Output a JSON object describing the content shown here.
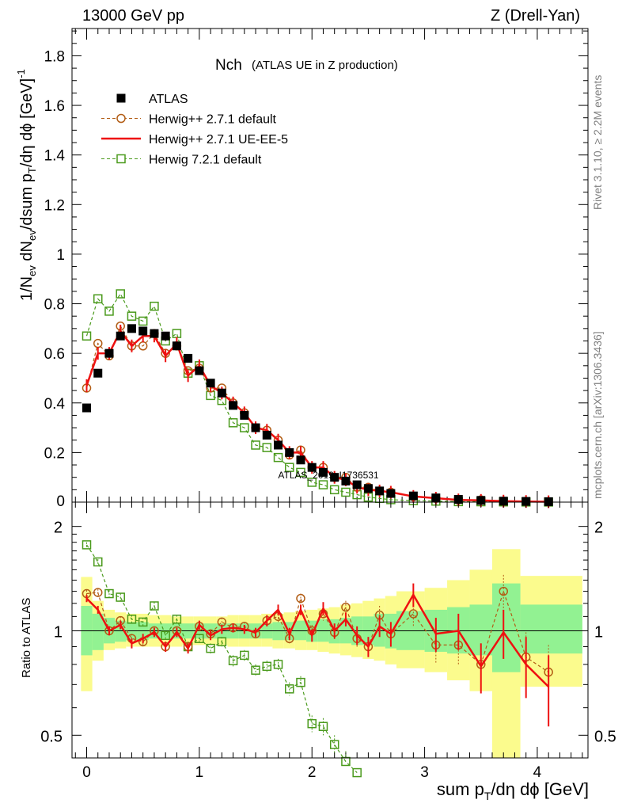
{
  "header": {
    "left": "13000 GeV pp",
    "right": "Z (Drell-Yan)"
  },
  "side_labels": {
    "rivet": "Rivet 3.1.10, ≥ 2.2M events",
    "mcplots": "mcplots.cern.ch [arXiv:1306.3436]"
  },
  "watermark": "ATLAS_2019_I1736531",
  "chart_data": [
    {
      "type": "scatter",
      "panel": "main",
      "title_main": "Nch",
      "title_sub": "(ATLAS UE in Z production)",
      "ylabel": "1/Nev dNev/dsum pT/dη dϕ [GeV]^-1",
      "xlabel": "sum pT/dη dϕ [GeV]",
      "xlim": [
        -0.13,
        4.45
      ],
      "ylim": [
        0,
        1.91
      ],
      "y_ticks": [
        0.2,
        0.4,
        0.6,
        0.8,
        1,
        1.2,
        1.4,
        1.6,
        1.8
      ],
      "y_tick_labels": [
        "0.2",
        "0.4",
        "0.6",
        "0.8",
        "1",
        "1.2",
        "1.4",
        "1.6",
        "1.8"
      ],
      "y_zero_label": "0",
      "legend_position": "top-left",
      "x": [
        0.0,
        0.1,
        0.2,
        0.3,
        0.4,
        0.5,
        0.6,
        0.7,
        0.8,
        0.9,
        1.0,
        1.1,
        1.2,
        1.3,
        1.4,
        1.5,
        1.6,
        1.7,
        1.8,
        1.9,
        2.0,
        2.1,
        2.2,
        2.3,
        2.4,
        2.5,
        2.6,
        2.7,
        2.9,
        3.1,
        3.3,
        3.5,
        3.7,
        3.9,
        4.1
      ],
      "series": [
        {
          "name": "ATLAS",
          "style": "marker-square",
          "color": "#000000",
          "values": [
            0.38,
            0.52,
            0.6,
            0.67,
            0.7,
            0.69,
            0.68,
            0.67,
            0.63,
            0.58,
            0.53,
            0.48,
            0.44,
            0.39,
            0.35,
            0.3,
            0.27,
            0.23,
            0.2,
            0.17,
            0.14,
            0.12,
            0.1,
            0.085,
            0.07,
            0.055,
            0.045,
            0.035,
            0.025,
            0.017,
            0.011,
            0.007,
            0.004,
            0.003,
            0.002
          ]
        },
        {
          "name": "Herwig++ 2.7.1 default",
          "style": "dashed-circle",
          "color": "#b25d15",
          "values": [
            0.46,
            0.64,
            0.59,
            0.71,
            0.63,
            0.63,
            0.68,
            0.6,
            0.63,
            0.53,
            0.54,
            0.46,
            0.46,
            0.4,
            0.36,
            0.3,
            0.29,
            0.25,
            0.19,
            0.21,
            0.14,
            0.14,
            0.1,
            0.1,
            0.06,
            0.06,
            0.045,
            0.04,
            0.022,
            0.015,
            0.009,
            0.009,
            0.004,
            0.003,
            0.0015
          ]
        },
        {
          "name": "Herwig++ 2.7.1 UE-EE-5",
          "style": "solid-line",
          "color": "#ee1111",
          "values": [
            0.47,
            0.6,
            0.6,
            0.69,
            0.63,
            0.67,
            0.67,
            0.59,
            0.64,
            0.51,
            0.55,
            0.47,
            0.44,
            0.4,
            0.36,
            0.3,
            0.29,
            0.25,
            0.2,
            0.2,
            0.14,
            0.14,
            0.1,
            0.09,
            0.06,
            0.05,
            0.045,
            0.04,
            0.023,
            0.016,
            0.009,
            0.007,
            0.004,
            0.0025,
            0.0015
          ]
        },
        {
          "name": "Herwig 7.2.1 default",
          "style": "dashed-square",
          "color": "#4a9a1c",
          "values": [
            0.67,
            0.82,
            0.77,
            0.84,
            0.75,
            0.73,
            0.79,
            0.65,
            0.68,
            0.52,
            0.55,
            0.43,
            0.41,
            0.32,
            0.3,
            0.23,
            0.22,
            0.18,
            0.14,
            0.12,
            0.08,
            0.07,
            0.05,
            0.04,
            0.03,
            0.02,
            0.015,
            0.01,
            0.006,
            0.004,
            0.002,
            0.0015,
            0.001,
            0.0005,
            0.0003
          ]
        }
      ]
    },
    {
      "type": "line",
      "panel": "ratio",
      "ylabel": "Ratio to ATLAS",
      "scale": "log",
      "ylim": [
        0.43,
        2.35
      ],
      "x_ticks": [
        0,
        1,
        2,
        3,
        4
      ],
      "x_tick_labels": [
        "0",
        "1",
        "2",
        "3",
        "4"
      ],
      "y_ticks": [
        0.5,
        1,
        2
      ],
      "y_tick_labels": [
        "0.5",
        "1",
        "2"
      ],
      "reference_line": 1,
      "band_edges": [
        -0.05,
        0.05,
        0.15,
        0.25,
        0.35,
        0.45,
        0.55,
        0.65,
        0.75,
        0.85,
        0.95,
        1.05,
        1.15,
        1.25,
        1.35,
        1.45,
        1.55,
        1.65,
        1.75,
        1.85,
        1.95,
        2.05,
        2.15,
        2.25,
        2.35,
        2.45,
        2.55,
        2.65,
        2.75,
        3.0,
        3.2,
        3.4,
        3.6,
        3.85,
        4.4
      ],
      "band_inner": [
        [
          0.85,
          1.18
        ],
        [
          0.88,
          1.12
        ],
        [
          0.92,
          1.09
        ],
        [
          0.93,
          1.07
        ],
        [
          0.94,
          1.06
        ],
        [
          0.94,
          1.06
        ],
        [
          0.95,
          1.05
        ],
        [
          0.95,
          1.05
        ],
        [
          0.95,
          1.05
        ],
        [
          0.95,
          1.05
        ],
        [
          0.95,
          1.05
        ],
        [
          0.95,
          1.05
        ],
        [
          0.95,
          1.05
        ],
        [
          0.95,
          1.05
        ],
        [
          0.95,
          1.05
        ],
        [
          0.95,
          1.05
        ],
        [
          0.95,
          1.05
        ],
        [
          0.94,
          1.06
        ],
        [
          0.94,
          1.06
        ],
        [
          0.94,
          1.07
        ],
        [
          0.93,
          1.07
        ],
        [
          0.93,
          1.08
        ],
        [
          0.92,
          1.08
        ],
        [
          0.92,
          1.09
        ],
        [
          0.91,
          1.1
        ],
        [
          0.91,
          1.1
        ],
        [
          0.9,
          1.12
        ],
        [
          0.89,
          1.12
        ],
        [
          0.88,
          1.14
        ],
        [
          0.87,
          1.15
        ],
        [
          0.86,
          1.17
        ],
        [
          0.85,
          1.19
        ],
        [
          0.76,
          1.37
        ],
        [
          0.86,
          1.19
        ]
      ],
      "band_outer": [
        [
          0.67,
          1.43
        ],
        [
          0.82,
          1.22
        ],
        [
          0.88,
          1.15
        ],
        [
          0.89,
          1.13
        ],
        [
          0.9,
          1.12
        ],
        [
          0.9,
          1.12
        ],
        [
          0.9,
          1.11
        ],
        [
          0.9,
          1.11
        ],
        [
          0.9,
          1.1
        ],
        [
          0.91,
          1.1
        ],
        [
          0.91,
          1.1
        ],
        [
          0.91,
          1.1
        ],
        [
          0.91,
          1.1
        ],
        [
          0.9,
          1.11
        ],
        [
          0.9,
          1.11
        ],
        [
          0.9,
          1.11
        ],
        [
          0.9,
          1.12
        ],
        [
          0.89,
          1.12
        ],
        [
          0.89,
          1.13
        ],
        [
          0.88,
          1.14
        ],
        [
          0.88,
          1.15
        ],
        [
          0.87,
          1.16
        ],
        [
          0.86,
          1.17
        ],
        [
          0.85,
          1.19
        ],
        [
          0.84,
          1.2
        ],
        [
          0.83,
          1.22
        ],
        [
          0.82,
          1.24
        ],
        [
          0.8,
          1.26
        ],
        [
          0.78,
          1.3
        ],
        [
          0.76,
          1.33
        ],
        [
          0.72,
          1.4
        ],
        [
          0.67,
          1.5
        ],
        [
          0.4,
          1.72
        ],
        [
          0.69,
          1.44
        ]
      ],
      "series": [
        {
          "name": "Herwig++ 2.7.1 default",
          "values": [
            1.28,
            1.29,
            1.0,
            1.07,
            0.95,
            0.93,
            1.0,
            0.9,
            1.0,
            0.9,
            1.03,
            0.98,
            1.06,
            1.02,
            1.03,
            0.98,
            1.07,
            1.1,
            0.95,
            1.24,
            1.0,
            1.12,
            0.99,
            1.17,
            0.95,
            0.9,
            1.11,
            0.98,
            1.12,
            0.91,
            0.91,
            0.8,
            1.3,
            0.84,
            0.76
          ],
          "errors": [
            0.03,
            0.03,
            0.03,
            0.03,
            0.03,
            0.03,
            0.03,
            0.03,
            0.03,
            0.03,
            0.03,
            0.03,
            0.03,
            0.03,
            0.03,
            0.03,
            0.04,
            0.04,
            0.04,
            0.04,
            0.04,
            0.05,
            0.05,
            0.05,
            0.06,
            0.06,
            0.07,
            0.08,
            0.09,
            0.1,
            0.11,
            0.12,
            0.15,
            0.15,
            0.15
          ]
        },
        {
          "name": "Herwig++ 2.7.1 UE-EE-5",
          "values": [
            1.24,
            1.15,
            1.0,
            1.04,
            0.92,
            0.95,
            0.99,
            0.9,
            0.99,
            0.89,
            1.04,
            0.97,
            1.01,
            1.02,
            1.01,
            0.99,
            1.07,
            1.15,
            0.98,
            1.15,
            0.97,
            1.16,
            1.0,
            1.08,
            0.97,
            0.9,
            1.03,
            0.98,
            1.27,
            0.98,
            1.0,
            0.79,
            0.99,
            0.8,
            0.69
          ],
          "errors": [
            0.03,
            0.03,
            0.03,
            0.03,
            0.03,
            0.03,
            0.03,
            0.03,
            0.03,
            0.03,
            0.03,
            0.03,
            0.03,
            0.03,
            0.03,
            0.03,
            0.04,
            0.04,
            0.04,
            0.04,
            0.04,
            0.05,
            0.05,
            0.05,
            0.06,
            0.06,
            0.07,
            0.08,
            0.1,
            0.11,
            0.12,
            0.13,
            0.16,
            0.16,
            0.16
          ]
        },
        {
          "name": "Herwig 7.2.1 default",
          "values": [
            1.77,
            1.58,
            1.28,
            1.25,
            1.08,
            1.06,
            1.18,
            0.97,
            1.08,
            0.9,
            0.95,
            0.89,
            0.93,
            0.82,
            0.85,
            0.77,
            0.79,
            0.8,
            0.68,
            0.71,
            0.54,
            0.53,
            0.47,
            0.42,
            0.39
          ],
          "errors": [
            0.03,
            0.03,
            0.03,
            0.03,
            0.03,
            0.03,
            0.03,
            0.03,
            0.03,
            0.03,
            0.03,
            0.03,
            0.03,
            0.03,
            0.03,
            0.03,
            0.03,
            0.03,
            0.03,
            0.03,
            0.03,
            0.03,
            0.03,
            0.03,
            0.03
          ]
        }
      ]
    }
  ],
  "colors": {
    "atlas": "#000000",
    "herwigpp_default": "#b25d15",
    "herwigpp_ueee5": "#ee1111",
    "herwig7": "#4a9a1c",
    "band_inner": "#92f292",
    "band_outer": "#fbfb8d"
  }
}
